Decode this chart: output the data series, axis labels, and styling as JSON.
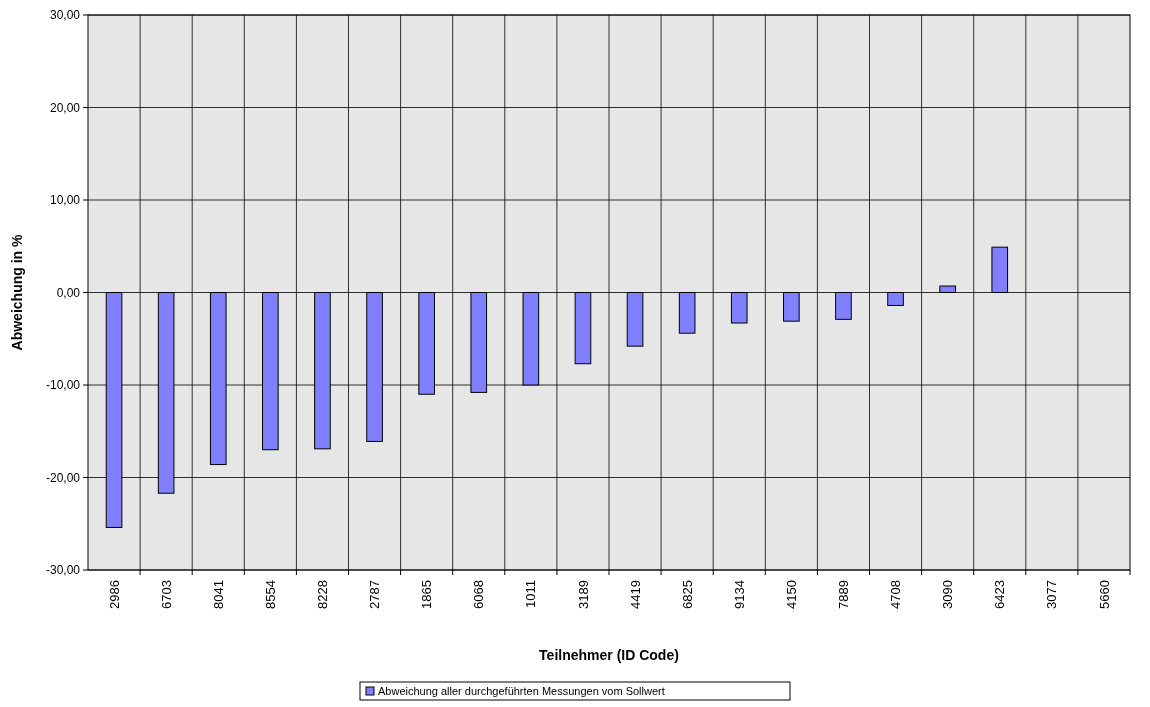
{
  "chart_data": {
    "type": "bar",
    "xlabel": "Teilnehmer (ID Code)",
    "ylabel": "Abweichung in %",
    "categories": [
      "2986",
      "6703",
      "8041",
      "8554",
      "8228",
      "2787",
      "1865",
      "6068",
      "1011",
      "3189",
      "4419",
      "6825",
      "9134",
      "4150",
      "7889",
      "4708",
      "3090",
      "6423",
      "3077",
      "5660"
    ],
    "series": [
      {
        "name": "Abweichung aller durchgeführten Messungen vom Sollwert",
        "color": "#8080ff",
        "values": [
          -25.4,
          -21.7,
          -18.6,
          -17.0,
          -16.9,
          -16.1,
          -11.0,
          -10.8,
          -10.0,
          -7.7,
          -5.8,
          -4.4,
          -3.3,
          -3.1,
          -2.9,
          -1.4,
          0.7,
          4.9,
          null,
          null
        ]
      }
    ],
    "ylim": [
      -30,
      30
    ],
    "yticks": [
      {
        "value": -30,
        "label": "-30,00"
      },
      {
        "value": -20,
        "label": "-20,00"
      },
      {
        "value": -10,
        "label": "-10,00"
      },
      {
        "value": 0,
        "label": "0,00"
      },
      {
        "value": 10,
        "label": "10,00"
      },
      {
        "value": 20,
        "label": "20,00"
      },
      {
        "value": 30,
        "label": "30,00"
      }
    ],
    "grid": true,
    "legend": "bottom"
  }
}
